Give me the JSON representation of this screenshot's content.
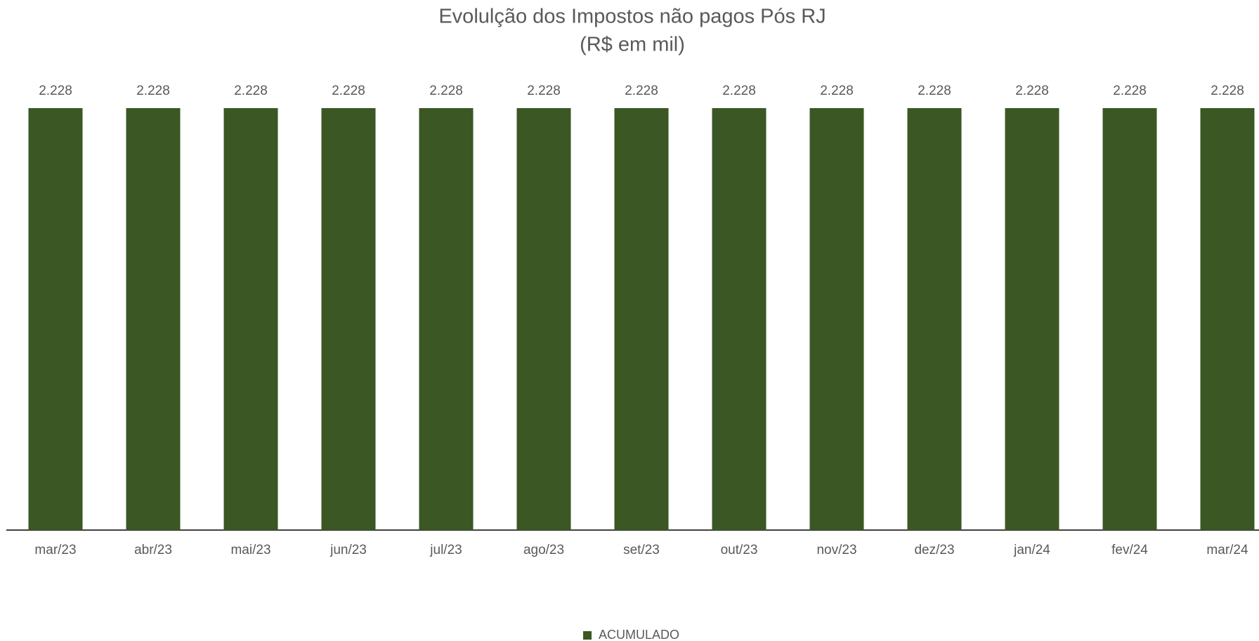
{
  "chart_data": {
    "type": "bar",
    "title": "Evolulção dos Impostos não pagos Pós RJ",
    "subtitle": "(R$ em mil)",
    "categories": [
      "mar/23",
      "abr/23",
      "mai/23",
      "jun/23",
      "jul/23",
      "ago/23",
      "set/23",
      "out/23",
      "nov/23",
      "dez/23",
      "jan/24",
      "fev/24",
      "mar/24"
    ],
    "series": [
      {
        "name": "ACUMULADO",
        "color": "#3a5724",
        "values": [
          2228,
          2228,
          2228,
          2228,
          2228,
          2228,
          2228,
          2228,
          2228,
          2228,
          2228,
          2228,
          2228
        ],
        "value_labels": [
          "2.228",
          "2.228",
          "2.228",
          "2.228",
          "2.228",
          "2.228",
          "2.228",
          "2.228",
          "2.228",
          "2.228",
          "2.228",
          "2.228",
          "2.228"
        ]
      }
    ]
  }
}
